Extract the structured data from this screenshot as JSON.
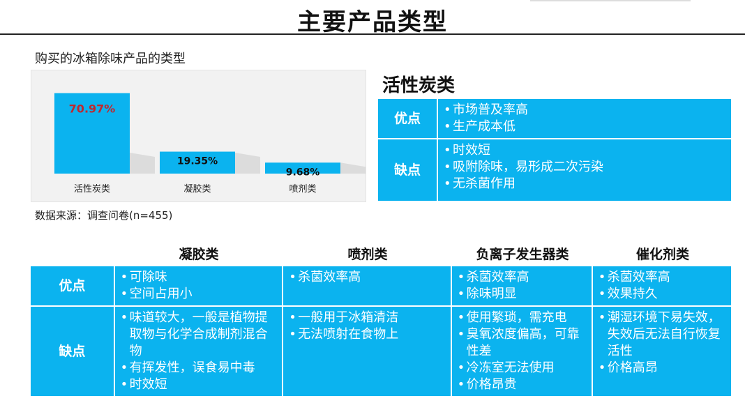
{
  "page": {
    "title": "主要产品类型"
  },
  "chart": {
    "caption": "购买的冰箱除味产品的类型",
    "source": "数据来源：调查问卷(n=455)"
  },
  "chart_data": {
    "type": "bar",
    "title": "购买的冰箱除味产品的类型",
    "categories": [
      "活性炭类",
      "凝胶类",
      "喷剂类"
    ],
    "values": [
      70.97,
      19.35,
      9.68
    ],
    "value_labels": [
      "70.97%",
      "19.35%",
      "9.68%"
    ],
    "xlabel": "",
    "ylabel": "",
    "ylim": [
      0,
      75
    ],
    "grid": false,
    "colors": {
      "bar": "#0bb3ef",
      "first_label": "#c0272d",
      "label": "#111111"
    }
  },
  "activated_carbon": {
    "title": "活性炭类",
    "pros_label": "优点",
    "cons_label": "缺点",
    "pros": [
      "市场普及率高",
      "生产成本低"
    ],
    "cons": [
      "时效短",
      "吸附除味，易形成二次污染",
      "无杀菌作用"
    ]
  },
  "comparison": {
    "headers": [
      "凝胶类",
      "喷剂类",
      "负离子发生器类",
      "催化剂类"
    ],
    "pros_label": "优点",
    "cons_label": "缺点",
    "pros": [
      [
        "可除味",
        "空间占用小"
      ],
      [
        "杀菌效率高"
      ],
      [
        "杀菌效率高",
        "除味明显"
      ],
      [
        "杀菌效率高",
        "效果持久"
      ]
    ],
    "cons": [
      [
        "味道较大，一般是植物提取物与化学合成制剂混合物",
        "有挥发性，误食易中毒",
        "时效短"
      ],
      [
        "一般用于冰箱清洁",
        "无法喷射在食物上"
      ],
      [
        "使用繁琐，需充电",
        "臭氧浓度偏高，可靠性差",
        "冷冻室无法使用",
        "价格昂贵"
      ],
      [
        "潮湿环境下易失效，失效后无法自行恢复活性",
        "价格高昂"
      ]
    ]
  },
  "colors": {
    "accent": "#0bb3ef",
    "background": "#ffffff",
    "chart_bg": "#f2f2f2"
  }
}
